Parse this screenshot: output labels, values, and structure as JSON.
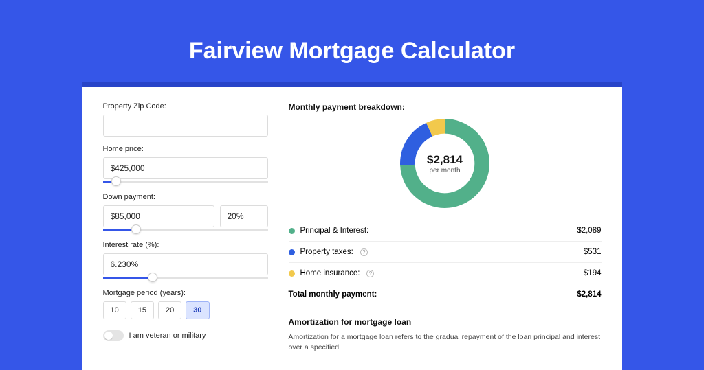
{
  "page": {
    "title": "Fairview Mortgage Calculator",
    "background_color": "#3556e8",
    "card_border_color": "#2844c8"
  },
  "form": {
    "zip": {
      "label": "Property Zip Code:",
      "value": ""
    },
    "home_price": {
      "label": "Home price:",
      "value": "$425,000",
      "slider_pct": 8
    },
    "down_payment": {
      "label": "Down payment:",
      "amount": "$85,000",
      "percent": "20%",
      "slider_pct": 20
    },
    "interest_rate": {
      "label": "Interest rate (%):",
      "value": "6.230%",
      "slider_pct": 30
    },
    "period": {
      "label": "Mortgage period (years):",
      "options": [
        "10",
        "15",
        "20",
        "30"
      ],
      "selected": "30"
    },
    "veteran": {
      "label": "I am veteran or military",
      "checked": false
    }
  },
  "breakdown": {
    "title": "Monthly payment breakdown:",
    "center_amount": "$2,814",
    "center_sub": "per month",
    "chart": {
      "type": "donut",
      "slices": [
        {
          "key": "principal_interest",
          "value": 2089,
          "pct": 0.742,
          "color": "#52b08a"
        },
        {
          "key": "property_taxes",
          "value": 531,
          "pct": 0.189,
          "color": "#2f5fe0"
        },
        {
          "key": "home_insurance",
          "value": 194,
          "pct": 0.069,
          "color": "#f2c94c"
        }
      ],
      "stroke_width": 20,
      "radius": 50,
      "background": "#ffffff"
    },
    "rows": [
      {
        "label": "Principal & Interest:",
        "value": "$2,089",
        "color": "#52b08a",
        "info": false
      },
      {
        "label": "Property taxes:",
        "value": "$531",
        "color": "#2f5fe0",
        "info": true
      },
      {
        "label": "Home insurance:",
        "value": "$194",
        "color": "#f2c94c",
        "info": true
      }
    ],
    "total": {
      "label": "Total monthly payment:",
      "value": "$2,814"
    }
  },
  "amortization": {
    "title": "Amortization for mortgage loan",
    "text": "Amortization for a mortgage loan refers to the gradual repayment of the loan principal and interest over a specified"
  }
}
